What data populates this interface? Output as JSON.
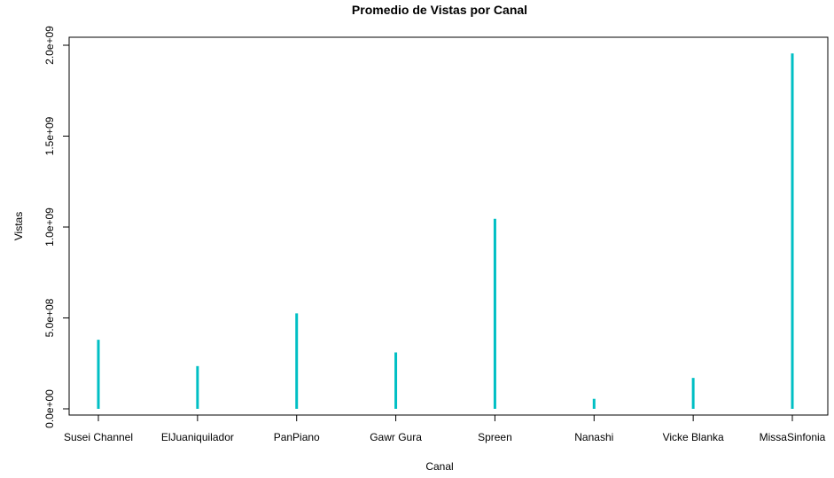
{
  "chart_data": {
    "type": "bar",
    "title": "Promedio de Vistas por Canal",
    "xlabel": "Canal",
    "ylabel": "Vistas",
    "categories": [
      "Susei Channel",
      "ElJuaniquilador",
      "PanPiano",
      "Gawr Gura",
      "Spreen",
      "Nanashi",
      "Vicke Blanka",
      "MissaSinfonia"
    ],
    "values": [
      380000000,
      235000000,
      525000000,
      310000000,
      1045000000,
      55000000,
      170000000,
      1955000000
    ],
    "y_ticks": [
      0,
      500000000,
      1000000000,
      1500000000,
      2000000000
    ],
    "y_tick_labels": [
      "0.0e+00",
      "5.0e+08",
      "1.0e+09",
      "1.5e+09",
      "2.0e+09"
    ],
    "ylim": [
      0,
      2000000000
    ],
    "grid": false,
    "legend": "none",
    "bar_color": "#00BFC4"
  }
}
